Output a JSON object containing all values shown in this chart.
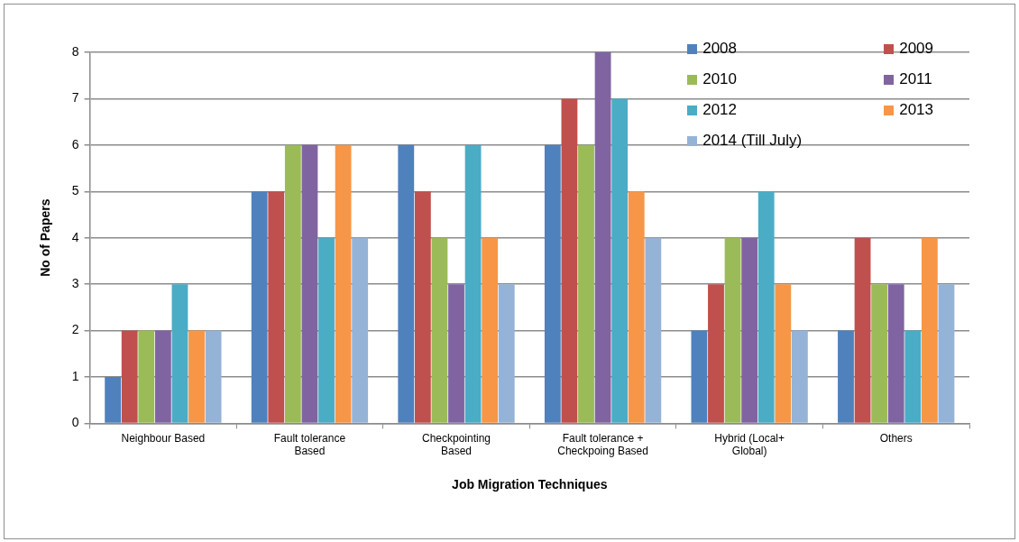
{
  "chart_data": {
    "type": "bar",
    "xlabel": "Job Migration Techniques",
    "ylabel": "No of Papers",
    "categories": [
      "Neighbour Based",
      "Fault tolerance Based",
      "Checkpointing Based",
      "Fault tolerance + Checkpoing Based",
      "Hybrid (Local+ Global)",
      "Others"
    ],
    "series": [
      {
        "name": "2008",
        "color": "#4f81bd",
        "values": [
          1,
          5,
          6,
          6,
          2,
          2
        ]
      },
      {
        "name": "2009",
        "color": "#c0504d",
        "values": [
          2,
          5,
          5,
          7,
          3,
          4
        ]
      },
      {
        "name": "2010",
        "color": "#9bbb59",
        "values": [
          2,
          6,
          4,
          6,
          4,
          3
        ]
      },
      {
        "name": "2011",
        "color": "#8064a2",
        "values": [
          2,
          6,
          3,
          8,
          4,
          3
        ]
      },
      {
        "name": "2012",
        "color": "#4bacc6",
        "values": [
          3,
          4,
          6,
          7,
          5,
          2
        ]
      },
      {
        "name": "2013",
        "color": "#f79646",
        "values": [
          2,
          6,
          4,
          5,
          3,
          4
        ]
      },
      {
        "name": "2014 (Till July)",
        "color": "#95b3d7",
        "values": [
          2,
          4,
          3,
          4,
          2,
          3
        ]
      }
    ],
    "ylim": [
      0,
      8
    ],
    "yticks": [
      0,
      1,
      2,
      3,
      4,
      5,
      6,
      7,
      8
    ],
    "grid": "y",
    "legend": "top right"
  }
}
